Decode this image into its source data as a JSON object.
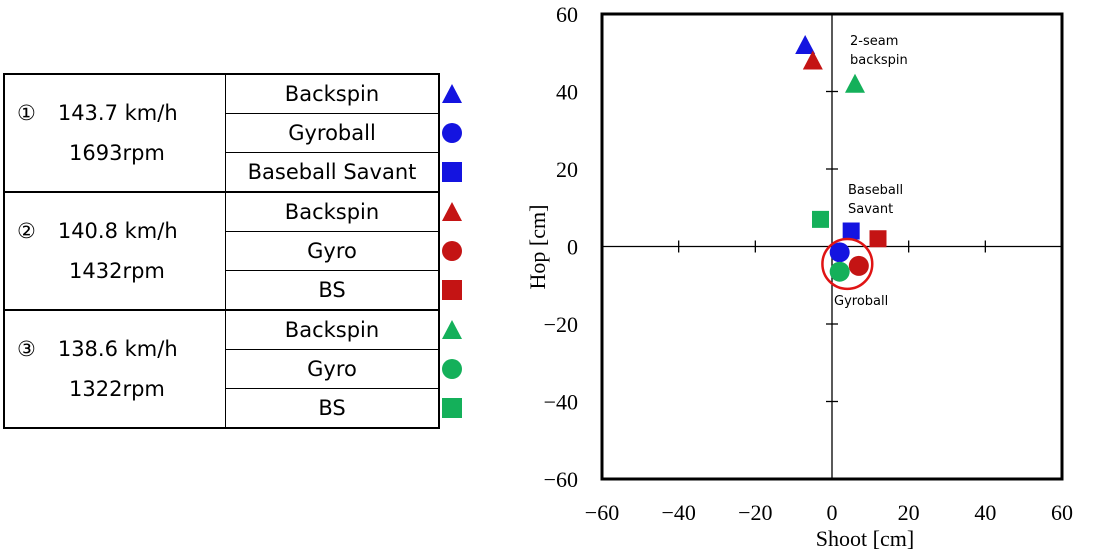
{
  "legend": {
    "groups": [
      {
        "number": "①",
        "speed": "143.7 km/h",
        "spin": "1693rpm",
        "methods": [
          {
            "label": "Backspin",
            "marker": "triangle",
            "color": "#1414e0"
          },
          {
            "label": "Gyroball",
            "marker": "circle",
            "color": "#1414e0"
          },
          {
            "label": "Baseball Savant",
            "marker": "square",
            "color": "#1414e0"
          }
        ]
      },
      {
        "number": "②",
        "speed": "140.8 km/h",
        "spin": "1432rpm",
        "methods": [
          {
            "label": "Backspin",
            "marker": "triangle",
            "color": "#c41414"
          },
          {
            "label": "Gyro",
            "marker": "circle",
            "color": "#c41414"
          },
          {
            "label": "BS",
            "marker": "square",
            "color": "#c41414"
          }
        ]
      },
      {
        "number": "③",
        "speed": "138.6 km/h",
        "spin": "1322rpm",
        "methods": [
          {
            "label": "Backspin",
            "marker": "triangle",
            "color": "#14b05a"
          },
          {
            "label": "Gyro",
            "marker": "circle",
            "color": "#14b05a"
          },
          {
            "label": "BS",
            "marker": "square",
            "color": "#14b05a"
          }
        ]
      }
    ]
  },
  "chart_data": {
    "type": "scatter",
    "xlabel": "Shoot [cm]",
    "ylabel": "Hop [cm]",
    "xlim": [
      -60,
      60
    ],
    "ylim": [
      -60,
      60
    ],
    "xticks": [
      -60,
      -40,
      -20,
      0,
      20,
      40,
      60
    ],
    "yticks": [
      -60,
      -40,
      -20,
      0,
      20,
      40,
      60
    ],
    "grid": false,
    "points": [
      {
        "group": "①",
        "method": "Backspin",
        "marker": "triangle",
        "color": "#1414e0",
        "x": -7,
        "y": 52
      },
      {
        "group": "②",
        "method": "Backspin",
        "marker": "triangle",
        "color": "#c41414",
        "x": -5,
        "y": 48
      },
      {
        "group": "③",
        "method": "Backspin",
        "marker": "triangle",
        "color": "#14b05a",
        "x": 6,
        "y": 42
      },
      {
        "group": "①",
        "method": "Baseball Savant",
        "marker": "square",
        "color": "#1414e0",
        "x": 5,
        "y": 4
      },
      {
        "group": "②",
        "method": "BS",
        "marker": "square",
        "color": "#c41414",
        "x": 12,
        "y": 2
      },
      {
        "group": "③",
        "method": "BS",
        "marker": "square",
        "color": "#14b05a",
        "x": -3,
        "y": 7
      },
      {
        "group": "①",
        "method": "Gyroball",
        "marker": "circle",
        "color": "#1414e0",
        "x": 2,
        "y": -1.5
      },
      {
        "group": "②",
        "method": "Gyro",
        "marker": "circle",
        "color": "#c41414",
        "x": 7,
        "y": -5
      },
      {
        "group": "③",
        "method": "Gyro",
        "marker": "circle",
        "color": "#14b05a",
        "x": 2,
        "y": -6.5
      }
    ],
    "highlight": {
      "shape": "circle",
      "color": "#e01414",
      "center": [
        4,
        -4.5
      ],
      "radius_data": 6.5
    },
    "annotations": [
      {
        "lines": [
          "2-seam",
          "backspin"
        ]
      },
      {
        "lines": [
          "Baseball",
          "Savant"
        ]
      },
      {
        "lines": [
          "Gyroball"
        ]
      }
    ]
  }
}
